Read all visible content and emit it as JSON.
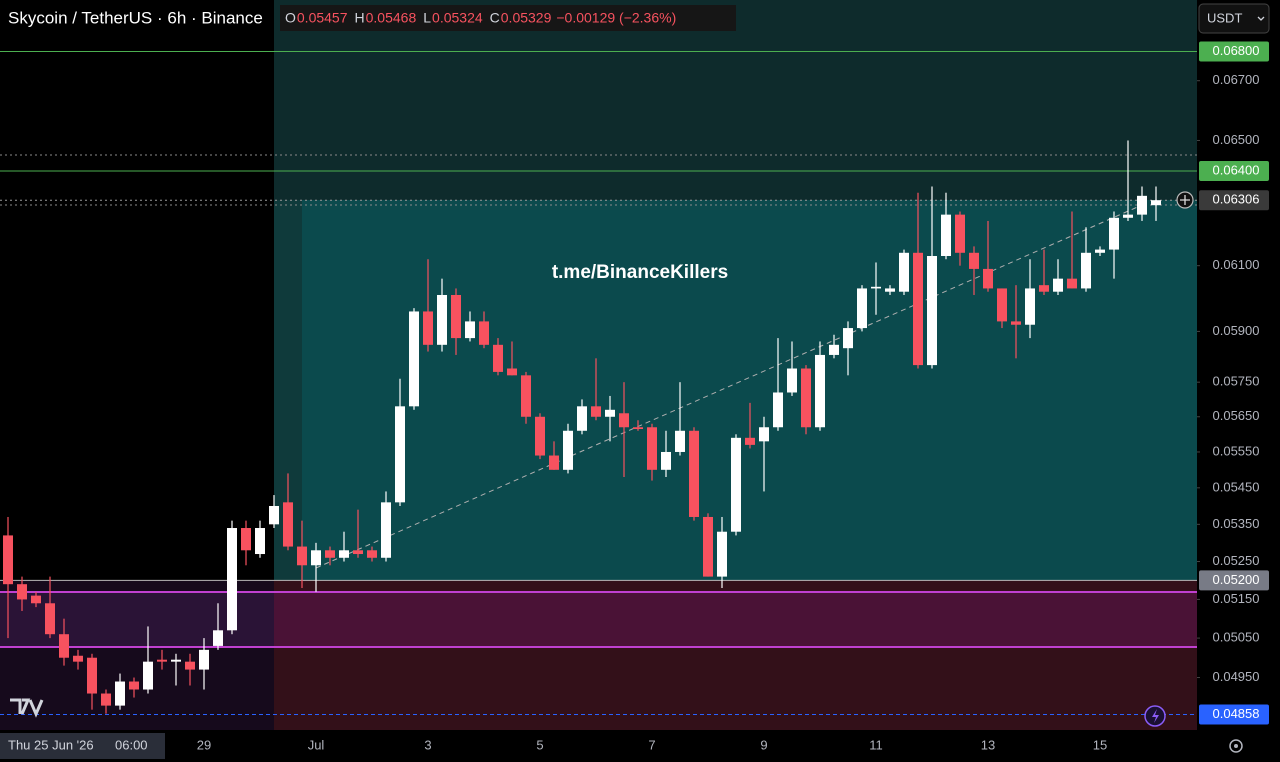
{
  "chart_data": {
    "type": "candlestick",
    "title": "Skycoin / TetherUS · 6h · Binance",
    "legend": [
      {
        "key": "O",
        "value": "0.05457"
      },
      {
        "key": "H",
        "value": "0.05468"
      },
      {
        "key": "L",
        "value": "0.05324"
      },
      {
        "key": "C",
        "value": "0.05329"
      }
    ],
    "change": "−0.00129 (−2.36%)",
    "currency": "USDT",
    "watermark": "t.me/BinanceKillers",
    "crosshair_date": "Thu 25 Jun '26",
    "crosshair_time": "06:00",
    "up_color": "#ffffff",
    "down_color": "#f7525f",
    "log_scale": true,
    "grid": false,
    "ylim": [
      0.0482,
      0.0698
    ],
    "yticks": [
      {
        "value": 0.067,
        "label": "0.06700"
      },
      {
        "value": 0.065,
        "label": "0.06500"
      },
      {
        "value": 0.061,
        "label": "0.06100"
      },
      {
        "value": 0.059,
        "label": "0.05900"
      },
      {
        "value": 0.0575,
        "label": "0.05750"
      },
      {
        "value": 0.0565,
        "label": "0.05650"
      },
      {
        "value": 0.0555,
        "label": "0.05550"
      },
      {
        "value": 0.0545,
        "label": "0.05450"
      },
      {
        "value": 0.0535,
        "label": "0.05350"
      },
      {
        "value": 0.0525,
        "label": "0.05250"
      },
      {
        "value": 0.0515,
        "label": "0.05150"
      },
      {
        "value": 0.0505,
        "label": "0.05050"
      },
      {
        "value": 0.0495,
        "label": "0.04950"
      }
    ],
    "price_lines": [
      {
        "value": 0.068,
        "label": "0.06800",
        "color": "#4caf50",
        "line_color": "#4caf50",
        "style": "solid"
      },
      {
        "value": 0.064,
        "label": "0.06400",
        "color": "#4caf50",
        "line_color": "#4caf50",
        "style": "solid"
      },
      {
        "value": 0.06306,
        "label": "0.06306",
        "color": "#3a3a3a",
        "line_color": "#9a9a9a",
        "style": "dotted"
      },
      {
        "value": 0.052,
        "label": "0.05200",
        "color": "#787b86",
        "line_color": "#b8b8b8",
        "style": "solid"
      },
      {
        "value": 0.04858,
        "label": "0.04858",
        "color": "#2962ff",
        "line_color": "#2962ff",
        "style": "dashed"
      }
    ],
    "categories": [
      null,
      null,
      null,
      null,
      null,
      null,
      null,
      null,
      null,
      null,
      null,
      null,
      null,
      null,
      "29",
      null,
      null,
      null,
      null,
      null,
      null,
      null,
      "Jul",
      null,
      null,
      null,
      null,
      null,
      null,
      null,
      "3",
      null,
      null,
      null,
      null,
      null,
      null,
      null,
      "5",
      null,
      null,
      null,
      null,
      null,
      null,
      null,
      "7",
      null,
      null,
      null,
      null,
      null,
      null,
      null,
      "9",
      null,
      null,
      null,
      null,
      null,
      null,
      null,
      "11",
      null,
      null,
      null,
      null,
      null,
      null,
      null,
      "13",
      null,
      null,
      null,
      null,
      null,
      null,
      null,
      "15",
      null,
      null,
      null,
      null
    ],
    "open": [
      0.0532,
      0.0519,
      0.0516,
      0.0514,
      0.0506,
      0.05005,
      0.05,
      0.0491,
      0.0488,
      0.0494,
      0.0492,
      0.04995,
      0.0499,
      0.0499,
      0.0497,
      0.0503,
      0.0507,
      0.0534,
      0.0527,
      0.0535,
      0.0541,
      0.0529,
      0.0524,
      0.0528,
      0.0526,
      0.0528,
      0.0528,
      0.0526,
      0.0541,
      0.0568,
      0.0596,
      0.0586,
      0.0601,
      0.0588,
      0.0593,
      0.0586,
      0.0579,
      0.0577,
      0.0565,
      0.0554,
      0.055,
      0.0561,
      0.0568,
      0.0565,
      0.0566,
      0.0562,
      0.0562,
      0.055,
      0.0555,
      0.0561,
      0.0537,
      0.0521,
      0.0533,
      0.0559,
      0.0558,
      0.0562,
      0.0572,
      0.0579,
      0.0562,
      0.0583,
      0.0585,
      0.0591,
      0.0603,
      0.0602,
      0.0602,
      0.0614,
      0.058,
      0.0613,
      0.0626,
      0.0614,
      0.0609,
      0.0603,
      0.0593,
      0.0592,
      0.0604,
      0.0602,
      0.0606,
      0.0603,
      0.0614,
      0.0615,
      0.0625,
      0.0626,
      0.0629
    ],
    "high": [
      0.0537,
      0.0521,
      0.0517,
      0.0521,
      0.051,
      0.0502,
      0.0501,
      0.0492,
      0.0496,
      0.0495,
      0.0508,
      0.0502,
      0.0501,
      0.0501,
      0.0505,
      0.0514,
      0.0536,
      0.0536,
      0.0536,
      0.0543,
      0.0549,
      0.0536,
      0.053,
      0.0529,
      0.0533,
      0.0539,
      0.0529,
      0.0544,
      0.0576,
      0.0597,
      0.0612,
      0.0606,
      0.0603,
      0.0596,
      0.0596,
      0.0588,
      0.0587,
      0.0578,
      0.0566,
      0.0558,
      0.0563,
      0.057,
      0.0582,
      0.0571,
      0.0575,
      0.0564,
      0.0563,
      0.0561,
      0.0575,
      0.0562,
      0.0538,
      0.0537,
      0.056,
      0.0569,
      0.0565,
      0.0588,
      0.0587,
      0.058,
      0.0587,
      0.0589,
      0.0593,
      0.0604,
      0.0611,
      0.0604,
      0.0615,
      0.0633,
      0.0635,
      0.0633,
      0.0627,
      0.0616,
      0.0624,
      0.0603,
      0.0604,
      0.0612,
      0.0615,
      0.0612,
      0.0627,
      0.0622,
      0.0616,
      0.0627,
      0.065,
      0.0635,
      0.0635
    ],
    "low": [
      0.0505,
      0.0512,
      0.0513,
      0.0505,
      0.0498,
      0.0497,
      0.0487,
      0.0486,
      0.0487,
      0.049,
      0.0491,
      0.0497,
      0.0493,
      0.0493,
      0.0492,
      0.0502,
      0.0506,
      0.0524,
      0.0526,
      0.0534,
      0.0528,
      0.0518,
      0.0517,
      0.0524,
      0.0525,
      0.0526,
      0.0525,
      0.0525,
      0.054,
      0.0567,
      0.0584,
      0.0584,
      0.0583,
      0.0587,
      0.0585,
      0.0577,
      0.0577,
      0.0563,
      0.0553,
      0.055,
      0.0549,
      0.056,
      0.0564,
      0.0558,
      0.0548,
      0.0561,
      0.0547,
      0.0548,
      0.0554,
      0.0536,
      0.0521,
      0.0518,
      0.0532,
      0.0556,
      0.0544,
      0.0561,
      0.0571,
      0.056,
      0.0561,
      0.0582,
      0.0577,
      0.059,
      0.0595,
      0.0601,
      0.0601,
      0.0579,
      0.0579,
      0.0612,
      0.061,
      0.0601,
      0.0602,
      0.0591,
      0.0582,
      0.0588,
      0.0601,
      0.0601,
      0.0603,
      0.0602,
      0.0613,
      0.0606,
      0.0624,
      0.0624,
      0.0624
    ],
    "close": [
      0.0519,
      0.0515,
      0.0514,
      0.0506,
      0.05,
      0.0499,
      0.0491,
      0.0488,
      0.0494,
      0.0492,
      0.0499,
      0.0499,
      0.04995,
      0.0497,
      0.0502,
      0.0507,
      0.0534,
      0.0528,
      0.0534,
      0.054,
      0.0529,
      0.0524,
      0.0528,
      0.0526,
      0.0528,
      0.0527,
      0.0526,
      0.0541,
      0.0568,
      0.0596,
      0.0586,
      0.0601,
      0.0588,
      0.0593,
      0.0586,
      0.0578,
      0.0577,
      0.0565,
      0.0554,
      0.055,
      0.0561,
      0.0568,
      0.0565,
      0.0567,
      0.0562,
      0.05615,
      0.055,
      0.0555,
      0.0561,
      0.0537,
      0.0521,
      0.0533,
      0.0559,
      0.0557,
      0.0562,
      0.0572,
      0.0579,
      0.0562,
      0.0583,
      0.0586,
      0.0591,
      0.0603,
      0.06035,
      0.0603,
      0.0614,
      0.058,
      0.0613,
      0.0626,
      0.0614,
      0.0609,
      0.0603,
      0.0593,
      0.0592,
      0.0603,
      0.0602,
      0.0606,
      0.0603,
      0.0614,
      0.0615,
      0.0625,
      0.0626,
      0.0632,
      0.06306
    ]
  }
}
